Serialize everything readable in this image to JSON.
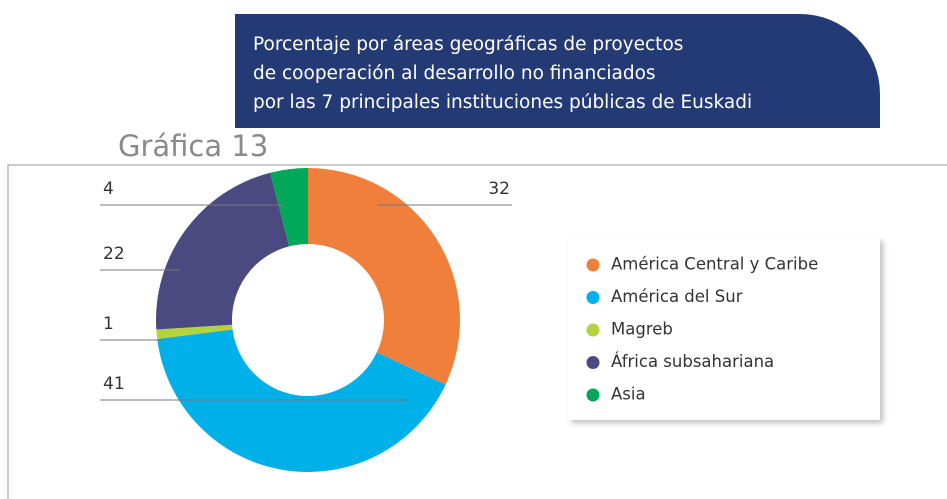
{
  "chart_data": {
    "type": "donut",
    "label": "Gráfica 13",
    "title": [
      "Porcentaje por áreas geográficas de proyectos",
      "de cooperación al desarrollo no financiados",
      "por las 7 principales instituciones públicas de Euskadi"
    ],
    "categories": [
      "América Central y Caribe",
      "América del Sur",
      "Magreb",
      "África subsahariana",
      "Asia"
    ],
    "values": [
      32,
      41,
      1,
      22,
      4
    ],
    "colors": [
      "#f07f3c",
      "#00b0e8",
      "#b5d33d",
      "#4a4a80",
      "#00a85a"
    ]
  }
}
